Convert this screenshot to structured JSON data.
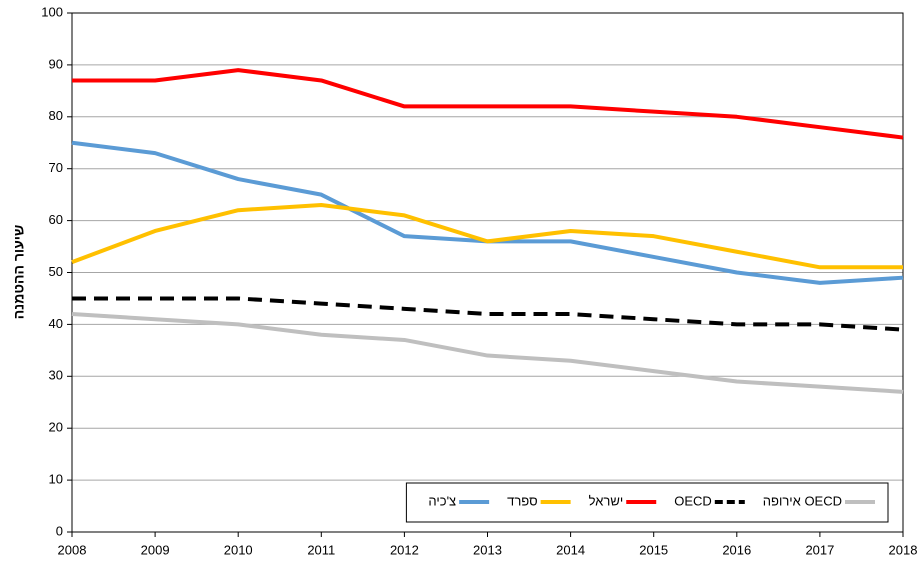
{
  "chart_data": {
    "type": "line",
    "y_label": "שיעור ההטמנה",
    "x": [
      2008,
      2009,
      2010,
      2011,
      2012,
      2013,
      2014,
      2015,
      2016,
      2017,
      2018
    ],
    "xlim": [
      2008,
      2018
    ],
    "ylim": [
      0,
      100
    ],
    "yticks": [
      0,
      10,
      20,
      30,
      40,
      50,
      60,
      70,
      80,
      90,
      100
    ],
    "grid": true,
    "legend": "bottom-right",
    "series": [
      {
        "name": "צ'כיה",
        "color": "#5b9bd5",
        "dashed": false,
        "values": [
          75,
          73,
          68,
          65,
          57,
          56,
          56,
          53,
          50,
          48,
          49
        ]
      },
      {
        "name": "ספרד",
        "color": "#ffc000",
        "dashed": false,
        "values": [
          52,
          58,
          62,
          63,
          61,
          56,
          58,
          57,
          54,
          51,
          51
        ]
      },
      {
        "name": "ישראל",
        "color": "#ff0000",
        "dashed": false,
        "values": [
          87,
          87,
          89,
          87,
          82,
          82,
          82,
          81,
          80,
          78,
          76
        ]
      },
      {
        "name": "OECD",
        "color": "#000000",
        "dashed": true,
        "values": [
          45,
          45,
          45,
          44,
          43,
          42,
          42,
          41,
          40,
          40,
          39
        ]
      },
      {
        "name": "OECD אירופה",
        "color": "#bfbfbf",
        "dashed": false,
        "values": [
          42,
          41,
          40,
          38,
          37,
          34,
          33,
          31,
          29,
          28,
          27
        ]
      }
    ]
  }
}
